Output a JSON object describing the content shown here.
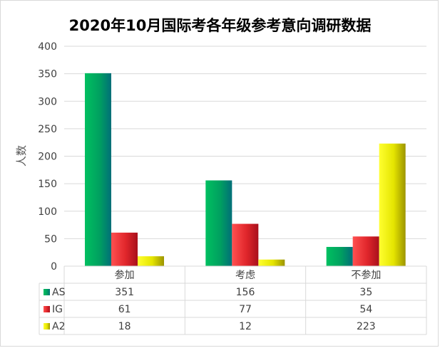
{
  "chart_data": {
    "type": "bar",
    "title": "2020年10月国际考各年级参考意向调研数据",
    "ylabel": "人数",
    "xlabel": "",
    "ylim": [
      0,
      400
    ],
    "yticks": [
      0,
      50,
      100,
      150,
      200,
      250,
      300,
      350,
      400
    ],
    "grid": true,
    "legend": "data-table",
    "categories": [
      "参加",
      "考虑",
      "不参加"
    ],
    "series": [
      {
        "name": "AS",
        "values": [
          351,
          156,
          35
        ],
        "color": "#00a850"
      },
      {
        "name": "IG",
        "values": [
          61,
          77,
          54
        ],
        "color": "#e0262b"
      },
      {
        "name": "A2",
        "values": [
          18,
          12,
          223
        ],
        "color": "#e5e500"
      }
    ]
  }
}
